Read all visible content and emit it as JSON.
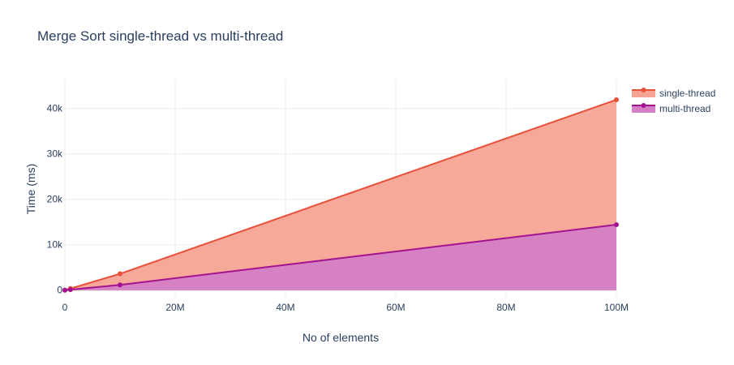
{
  "chart_data": {
    "type": "area",
    "title": "Merge Sort single-thread vs multi-thread",
    "xlabel": "No of elements",
    "ylabel": "Time (ms)",
    "x": [
      0,
      1000000,
      10000000,
      100000000
    ],
    "xlim": [
      0,
      100000000
    ],
    "ylim": [
      -1300,
      46000
    ],
    "x_ticks": [
      0,
      20000000,
      40000000,
      60000000,
      80000000,
      100000000
    ],
    "x_tick_labels": [
      "0",
      "20M",
      "40M",
      "60M",
      "80M",
      "100M"
    ],
    "y_ticks": [
      0,
      10000,
      20000,
      30000,
      40000
    ],
    "y_tick_labels": [
      "0",
      "10k",
      "20k",
      "30k",
      "40k"
    ],
    "grid": true,
    "legend_position": "top-right",
    "series": [
      {
        "name": "single-thread",
        "values": [
          0,
          350,
          3600,
          41900
        ],
        "line_color": "#e8503a",
        "fill_color": "#f5a393"
      },
      {
        "name": "multi-thread",
        "values": [
          0,
          110,
          1150,
          14400
        ],
        "line_color": "#a4138f",
        "fill_color": "#d47ec6"
      }
    ]
  }
}
